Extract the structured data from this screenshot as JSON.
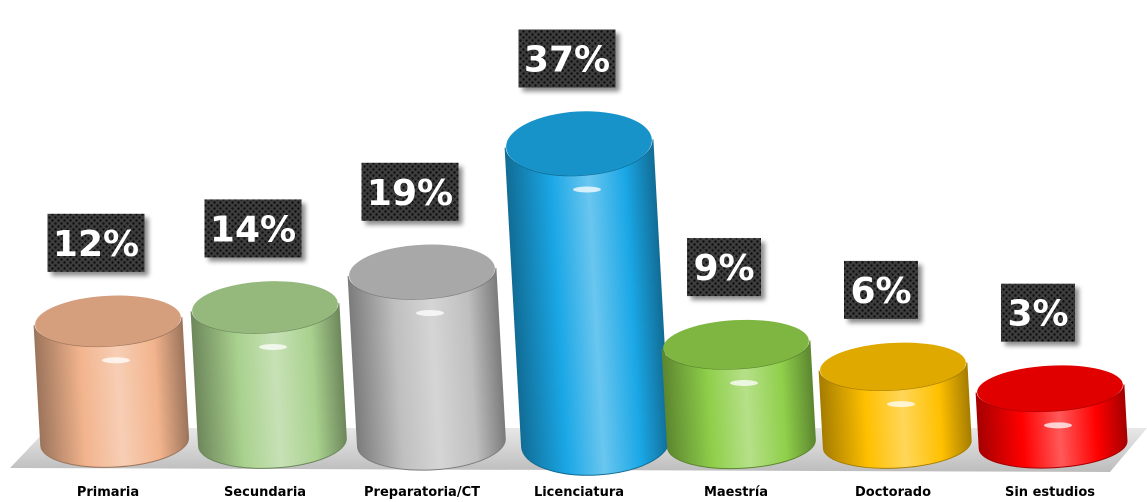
{
  "chart_data": {
    "type": "bar",
    "categories": [
      "Primaria",
      "Secundaria",
      "Preparatoria/CT",
      "Licenciatura",
      "Maestría",
      "Doctorado",
      "Sin estudios"
    ],
    "values": [
      12,
      14,
      19,
      37,
      9,
      6,
      3
    ],
    "data_labels": [
      "12%",
      "14%",
      "19%",
      "37%",
      "9%",
      "6%",
      "3%"
    ],
    "colors": [
      "#f2b48d",
      "#a9d18e",
      "#bfbfbf",
      "#1aa7e6",
      "#8fcf4a",
      "#ffc000",
      "#ff0000"
    ],
    "value_unit": "%",
    "ylim": [
      0,
      37
    ],
    "grid": false,
    "legend": "none"
  }
}
